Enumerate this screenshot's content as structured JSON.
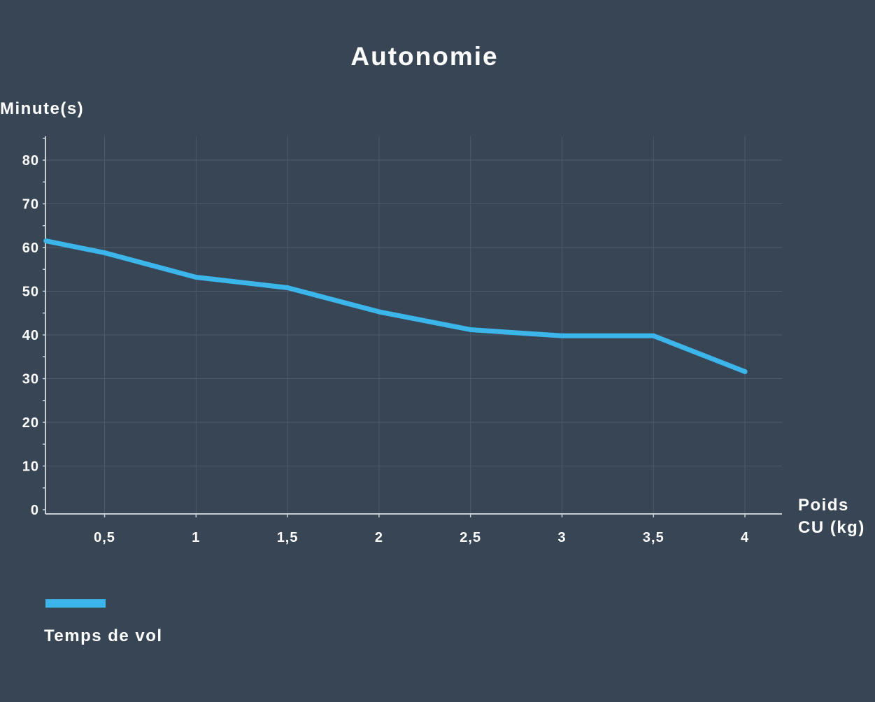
{
  "chart_data": {
    "type": "line",
    "title": "Autonomie",
    "ylabel": "Minute(s)",
    "xlabel_lines": [
      "Poids",
      "CU (kg)"
    ],
    "x_ticks": [
      0.5,
      1,
      1.5,
      2,
      2.5,
      3,
      3.5,
      4
    ],
    "x_tick_labels": [
      "0,5",
      "1",
      "1,5",
      "2",
      "2,5",
      "3",
      "3,5",
      "4"
    ],
    "y_ticks": [
      0,
      10,
      20,
      30,
      40,
      50,
      60,
      70,
      80
    ],
    "y_tick_labels": [
      "0",
      "10",
      "20",
      "30",
      "40",
      "50",
      "60",
      "70",
      "80"
    ],
    "xlim": [
      0.18,
      4.2
    ],
    "ylim": [
      0,
      86
    ],
    "grid": true,
    "legend_position": "bottom-left",
    "series": [
      {
        "name": "Temps de vol",
        "color": "#3bb5ea",
        "x": [
          0.18,
          0.5,
          1,
          1.5,
          2,
          2.5,
          3,
          3.5,
          4
        ],
        "y": [
          61.5,
          58.8,
          53.2,
          50.8,
          45.3,
          41.2,
          39.8,
          39.8,
          31.6
        ]
      }
    ]
  },
  "colors": {
    "background": "#374555",
    "grid": "#4c5a69",
    "axis": "#c8ced4",
    "text": "#ffffff",
    "series": "#3bb5ea"
  }
}
